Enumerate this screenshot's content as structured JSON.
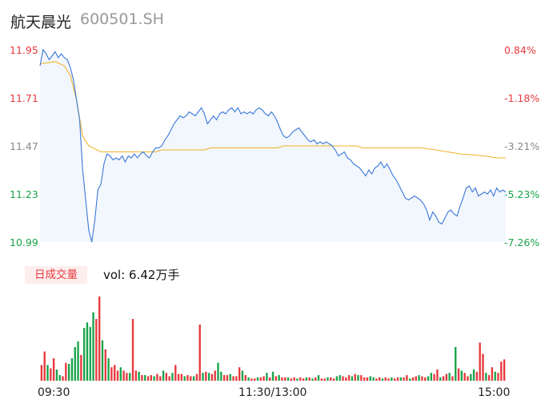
{
  "header": {
    "name": "航天晨光",
    "code": "600501.SH"
  },
  "chart_data": {
    "type": "line",
    "price_axis": {
      "ticks": [
        "11.95",
        "11.71",
        "11.47",
        "11.23",
        "10.99"
      ],
      "ylim": [
        10.99,
        11.95
      ]
    },
    "pct_axis": {
      "ticks": [
        "0.84%",
        "-1.18%",
        "-3.21%",
        "-5.23%",
        "-7.26%"
      ]
    },
    "x_ticks": [
      "09:30",
      "11:30/13:00",
      "15:00"
    ],
    "price_series": [
      [
        0,
        11.87
      ],
      [
        1,
        11.95
      ],
      [
        2,
        11.93
      ],
      [
        3,
        11.9
      ],
      [
        4,
        11.92
      ],
      [
        5,
        11.94
      ],
      [
        6,
        11.91
      ],
      [
        7,
        11.93
      ],
      [
        8,
        11.91
      ],
      [
        9,
        11.9
      ],
      [
        10,
        11.86
      ],
      [
        11,
        11.8
      ],
      [
        12,
        11.7
      ],
      [
        13,
        11.6
      ],
      [
        14,
        11.35
      ],
      [
        15,
        11.2
      ],
      [
        16,
        11.05
      ],
      [
        17,
        10.99
      ],
      [
        18,
        11.1
      ],
      [
        19,
        11.25
      ],
      [
        20,
        11.28
      ],
      [
        21,
        11.38
      ],
      [
        22,
        11.43
      ],
      [
        23,
        11.42
      ],
      [
        24,
        11.4
      ],
      [
        25,
        11.41
      ],
      [
        26,
        11.4
      ],
      [
        27,
        11.42
      ],
      [
        28,
        11.39
      ],
      [
        29,
        11.42
      ],
      [
        30,
        11.41
      ],
      [
        31,
        11.43
      ],
      [
        32,
        11.41
      ],
      [
        33,
        11.43
      ],
      [
        34,
        11.44
      ],
      [
        35,
        11.42
      ],
      [
        36,
        11.41
      ],
      [
        37,
        11.44
      ],
      [
        38,
        11.46
      ],
      [
        39,
        11.46
      ],
      [
        40,
        11.47
      ],
      [
        41,
        11.5
      ],
      [
        42,
        11.52
      ],
      [
        43,
        11.55
      ],
      [
        44,
        11.58
      ],
      [
        45,
        11.6
      ],
      [
        46,
        11.62
      ],
      [
        47,
        11.61
      ],
      [
        48,
        11.62
      ],
      [
        49,
        11.64
      ],
      [
        50,
        11.63
      ],
      [
        51,
        11.62
      ],
      [
        52,
        11.64
      ],
      [
        53,
        11.66
      ],
      [
        54,
        11.63
      ],
      [
        55,
        11.58
      ],
      [
        56,
        11.6
      ],
      [
        57,
        11.62
      ],
      [
        58,
        11.6
      ],
      [
        59,
        11.63
      ],
      [
        60,
        11.64
      ],
      [
        61,
        11.63
      ],
      [
        62,
        11.65
      ],
      [
        63,
        11.66
      ],
      [
        64,
        11.64
      ],
      [
        65,
        11.66
      ],
      [
        66,
        11.63
      ],
      [
        67,
        11.64
      ],
      [
        68,
        11.63
      ],
      [
        69,
        11.64
      ],
      [
        70,
        11.63
      ],
      [
        71,
        11.65
      ],
      [
        72,
        11.66
      ],
      [
        73,
        11.65
      ],
      [
        74,
        11.63
      ],
      [
        75,
        11.62
      ],
      [
        76,
        11.64
      ],
      [
        77,
        11.62
      ],
      [
        78,
        11.59
      ],
      [
        79,
        11.55
      ],
      [
        80,
        11.52
      ],
      [
        81,
        11.51
      ],
      [
        82,
        11.52
      ],
      [
        83,
        11.54
      ],
      [
        84,
        11.55
      ],
      [
        85,
        11.56
      ],
      [
        86,
        11.54
      ],
      [
        87,
        11.52
      ],
      [
        88,
        11.5
      ],
      [
        89,
        11.49
      ],
      [
        90,
        11.5
      ],
      [
        91,
        11.48
      ],
      [
        92,
        11.49
      ],
      [
        93,
        11.48
      ],
      [
        94,
        11.49
      ],
      [
        95,
        11.48
      ],
      [
        96,
        11.47
      ],
      [
        97,
        11.45
      ],
      [
        98,
        11.42
      ],
      [
        99,
        11.43
      ],
      [
        100,
        11.44
      ],
      [
        101,
        11.41
      ],
      [
        102,
        11.4
      ],
      [
        103,
        11.38
      ],
      [
        104,
        11.37
      ],
      [
        105,
        11.36
      ],
      [
        106,
        11.34
      ],
      [
        107,
        11.32
      ],
      [
        108,
        11.35
      ],
      [
        109,
        11.33
      ],
      [
        110,
        11.36
      ],
      [
        111,
        11.37
      ],
      [
        112,
        11.39
      ],
      [
        113,
        11.36
      ],
      [
        114,
        11.38
      ],
      [
        115,
        11.35
      ],
      [
        116,
        11.32
      ],
      [
        117,
        11.3
      ],
      [
        118,
        11.27
      ],
      [
        119,
        11.24
      ],
      [
        120,
        11.21
      ],
      [
        121,
        11.2
      ],
      [
        122,
        11.21
      ],
      [
        123,
        11.22
      ],
      [
        124,
        11.21
      ],
      [
        125,
        11.2
      ],
      [
        126,
        11.18
      ],
      [
        127,
        11.15
      ],
      [
        128,
        11.1
      ],
      [
        129,
        11.14
      ],
      [
        130,
        11.12
      ],
      [
        131,
        11.09
      ],
      [
        132,
        11.08
      ],
      [
        133,
        11.11
      ],
      [
        134,
        11.14
      ],
      [
        135,
        11.15
      ],
      [
        136,
        11.13
      ],
      [
        137,
        11.12
      ],
      [
        138,
        11.17
      ],
      [
        139,
        11.21
      ],
      [
        140,
        11.26
      ],
      [
        141,
        11.27
      ],
      [
        142,
        11.24
      ],
      [
        143,
        11.26
      ],
      [
        144,
        11.22
      ],
      [
        145,
        11.23
      ],
      [
        146,
        11.24
      ],
      [
        147,
        11.23
      ],
      [
        148,
        11.25
      ],
      [
        149,
        11.22
      ],
      [
        150,
        11.26
      ],
      [
        151,
        11.24
      ],
      [
        152,
        11.25
      ],
      [
        153,
        11.24
      ]
    ],
    "avg_series": [
      [
        0,
        11.88
      ],
      [
        5,
        11.89
      ],
      [
        8,
        11.87
      ],
      [
        10,
        11.82
      ],
      [
        12,
        11.7
      ],
      [
        14,
        11.52
      ],
      [
        16,
        11.47
      ],
      [
        20,
        11.44
      ],
      [
        30,
        11.44
      ],
      [
        38,
        11.44
      ],
      [
        40,
        11.45
      ],
      [
        54,
        11.45
      ],
      [
        56,
        11.46
      ],
      [
        78,
        11.46
      ],
      [
        80,
        11.47
      ],
      [
        104,
        11.47
      ],
      [
        106,
        11.46
      ],
      [
        125,
        11.46
      ],
      [
        130,
        11.45
      ],
      [
        134,
        11.44
      ],
      [
        138,
        11.43
      ],
      [
        146,
        11.42
      ],
      [
        150,
        11.41
      ],
      [
        153,
        11.41
      ]
    ],
    "volume": {
      "tag": "日成交量",
      "label": "vol: 6.42万手",
      "bars": [
        [
          0,
          14,
          "red"
        ],
        [
          1,
          26,
          "red"
        ],
        [
          2,
          14,
          "green"
        ],
        [
          3,
          11,
          "red"
        ],
        [
          4,
          20,
          "red"
        ],
        [
          5,
          10,
          "green"
        ],
        [
          6,
          5,
          "green"
        ],
        [
          7,
          4,
          "red"
        ],
        [
          8,
          16,
          "red"
        ],
        [
          9,
          15,
          "green"
        ],
        [
          10,
          20,
          "green"
        ],
        [
          11,
          30,
          "green"
        ],
        [
          12,
          35,
          "green"
        ],
        [
          13,
          23,
          "red"
        ],
        [
          14,
          47,
          "green"
        ],
        [
          15,
          52,
          "green"
        ],
        [
          16,
          48,
          "green"
        ],
        [
          17,
          61,
          "green"
        ],
        [
          18,
          55,
          "red"
        ],
        [
          19,
          75,
          "red"
        ],
        [
          20,
          36,
          "green"
        ],
        [
          21,
          28,
          "red"
        ],
        [
          22,
          20,
          "green"
        ],
        [
          23,
          12,
          "red"
        ],
        [
          24,
          14,
          "red"
        ],
        [
          25,
          9,
          "red"
        ],
        [
          26,
          12,
          "green"
        ],
        [
          27,
          9,
          "red"
        ],
        [
          28,
          7,
          "red"
        ],
        [
          29,
          7,
          "green"
        ],
        [
          30,
          55,
          "red"
        ],
        [
          31,
          9,
          "red"
        ],
        [
          32,
          8,
          "green"
        ],
        [
          33,
          5,
          "red"
        ],
        [
          34,
          5,
          "green"
        ],
        [
          35,
          4,
          "red"
        ],
        [
          36,
          5,
          "red"
        ],
        [
          37,
          4,
          "green"
        ],
        [
          38,
          6,
          "red"
        ],
        [
          39,
          4,
          "red"
        ],
        [
          40,
          9,
          "green"
        ],
        [
          41,
          7,
          "red"
        ],
        [
          42,
          4,
          "red"
        ],
        [
          43,
          7,
          "green"
        ],
        [
          44,
          14,
          "red"
        ],
        [
          45,
          6,
          "red"
        ],
        [
          46,
          6,
          "red"
        ],
        [
          47,
          4,
          "green"
        ],
        [
          48,
          5,
          "red"
        ],
        [
          49,
          4,
          "red"
        ],
        [
          50,
          4,
          "green"
        ],
        [
          51,
          6,
          "red"
        ],
        [
          52,
          50,
          "red"
        ],
        [
          53,
          7,
          "green"
        ],
        [
          54,
          8,
          "red"
        ],
        [
          55,
          7,
          "green"
        ],
        [
          56,
          6,
          "red"
        ],
        [
          57,
          9,
          "red"
        ],
        [
          58,
          16,
          "green"
        ],
        [
          59,
          8,
          "green"
        ],
        [
          60,
          5,
          "red"
        ],
        [
          61,
          5,
          "red"
        ],
        [
          62,
          6,
          "green"
        ],
        [
          63,
          4,
          "red"
        ],
        [
          64,
          4,
          "red"
        ],
        [
          65,
          12,
          "red"
        ],
        [
          66,
          9,
          "green"
        ],
        [
          67,
          5,
          "red"
        ],
        [
          68,
          3,
          "green"
        ],
        [
          69,
          2,
          "red"
        ],
        [
          70,
          2,
          "red"
        ],
        [
          71,
          3,
          "green"
        ],
        [
          72,
          3,
          "red"
        ],
        [
          73,
          4,
          "red"
        ],
        [
          74,
          7,
          "green"
        ],
        [
          75,
          3,
          "red"
        ],
        [
          76,
          8,
          "green"
        ],
        [
          77,
          4,
          "red"
        ],
        [
          78,
          5,
          "green"
        ],
        [
          79,
          3,
          "red"
        ],
        [
          80,
          3,
          "red"
        ],
        [
          81,
          3,
          "green"
        ],
        [
          82,
          2,
          "red"
        ],
        [
          83,
          3,
          "red"
        ],
        [
          84,
          2,
          "green"
        ],
        [
          85,
          3,
          "red"
        ],
        [
          86,
          2,
          "red"
        ],
        [
          87,
          3,
          "green"
        ],
        [
          88,
          3,
          "red"
        ],
        [
          89,
          2,
          "green"
        ],
        [
          90,
          3,
          "red"
        ],
        [
          91,
          5,
          "green"
        ],
        [
          92,
          2,
          "red"
        ],
        [
          93,
          2,
          "red"
        ],
        [
          94,
          3,
          "green"
        ],
        [
          95,
          3,
          "red"
        ],
        [
          96,
          2,
          "red"
        ],
        [
          97,
          4,
          "green"
        ],
        [
          98,
          5,
          "green"
        ],
        [
          99,
          4,
          "red"
        ],
        [
          100,
          3,
          "red"
        ],
        [
          101,
          5,
          "red"
        ],
        [
          102,
          4,
          "green"
        ],
        [
          103,
          6,
          "red"
        ],
        [
          104,
          5,
          "green"
        ],
        [
          105,
          5,
          "red"
        ],
        [
          106,
          3,
          "red"
        ],
        [
          107,
          3,
          "red"
        ],
        [
          108,
          4,
          "green"
        ],
        [
          109,
          3,
          "green"
        ],
        [
          110,
          2,
          "red"
        ],
        [
          111,
          3,
          "red"
        ],
        [
          112,
          2,
          "green"
        ],
        [
          113,
          3,
          "red"
        ],
        [
          114,
          2,
          "red"
        ],
        [
          115,
          3,
          "green"
        ],
        [
          116,
          2,
          "red"
        ],
        [
          117,
          3,
          "red"
        ],
        [
          118,
          3,
          "green"
        ],
        [
          119,
          3,
          "red"
        ],
        [
          120,
          5,
          "red"
        ],
        [
          121,
          2,
          "green"
        ],
        [
          122,
          3,
          "red"
        ],
        [
          123,
          4,
          "red"
        ],
        [
          124,
          5,
          "green"
        ],
        [
          125,
          4,
          "red"
        ],
        [
          126,
          3,
          "red"
        ],
        [
          127,
          4,
          "green"
        ],
        [
          128,
          7,
          "green"
        ],
        [
          129,
          6,
          "red"
        ],
        [
          130,
          10,
          "red"
        ],
        [
          131,
          3,
          "green"
        ],
        [
          132,
          4,
          "red"
        ],
        [
          133,
          6,
          "red"
        ],
        [
          134,
          7,
          "green"
        ],
        [
          135,
          4,
          "red"
        ],
        [
          136,
          30,
          "green"
        ],
        [
          137,
          11,
          "red"
        ],
        [
          138,
          9,
          "green"
        ],
        [
          139,
          7,
          "red"
        ],
        [
          140,
          4,
          "red"
        ],
        [
          141,
          6,
          "green"
        ],
        [
          142,
          10,
          "green"
        ],
        [
          143,
          8,
          "red"
        ],
        [
          144,
          34,
          "red"
        ],
        [
          145,
          24,
          "red"
        ],
        [
          146,
          7,
          "green"
        ],
        [
          147,
          5,
          "red"
        ],
        [
          148,
          12,
          "red"
        ],
        [
          149,
          8,
          "green"
        ],
        [
          150,
          7,
          "red"
        ],
        [
          151,
          17,
          "red"
        ],
        [
          152,
          19,
          "red"
        ]
      ]
    }
  }
}
